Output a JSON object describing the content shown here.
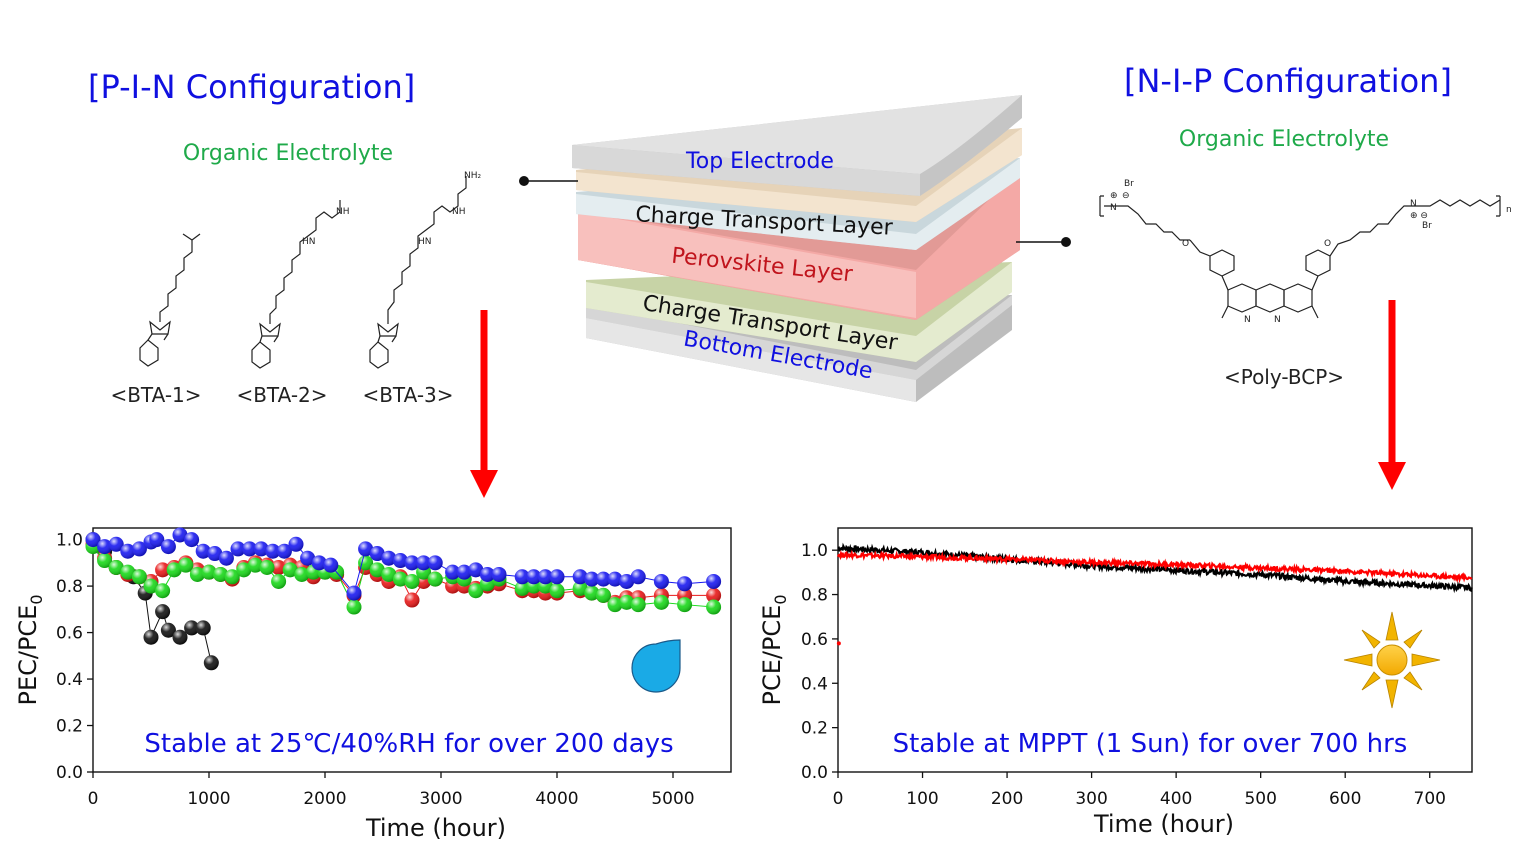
{
  "left_panel": {
    "heading": "[P-I-N Configuration]",
    "subheading": "Organic Electrolyte",
    "molecules": [
      "<BTA-1>",
      "<BTA-2>",
      "<BTA-3>"
    ]
  },
  "right_panel": {
    "heading": "[N-I-P Configuration]",
    "subheading": "Organic Electrolyte",
    "molecule": "<Poly-BCP>"
  },
  "stack": {
    "layers": [
      "Top Electrode",
      "Charge Transport Layer",
      "Perovskite Layer",
      "Charge Transport Layer",
      "Bottom Electrode"
    ]
  },
  "colors": {
    "heading": "#1010e0",
    "subheading": "#1faa4a",
    "arrow": "#ff0000",
    "perovskite_text": "#c0141c",
    "electrode_text": "#1010e0"
  },
  "icons": {
    "left_chart": "water-drop-icon",
    "right_chart": "sun-icon"
  },
  "chart_data": [
    {
      "type": "scatter",
      "title": "",
      "xlabel": "Time (hour)",
      "ylabel_main": "PEC/PCE",
      "ylabel_sub": "0",
      "xlim": [
        0,
        5500
      ],
      "ylim": [
        0.0,
        1.05
      ],
      "xticks": [
        0,
        1000,
        2000,
        3000,
        4000,
        5000
      ],
      "yticks": [
        0.0,
        0.2,
        0.4,
        0.6,
        0.8,
        1.0
      ],
      "annotation": "Stable at 25℃/40%RH for over 200 days",
      "series": [
        {
          "color": "#111111",
          "x": [
            0,
            100,
            200,
            350,
            450,
            500,
            600,
            650,
            750,
            850,
            950,
            1020
          ],
          "y": [
            1.0,
            0.95,
            0.88,
            0.84,
            0.77,
            0.58,
            0.69,
            0.61,
            0.58,
            0.62,
            0.62,
            0.47
          ]
        },
        {
          "color": "#e81818",
          "x": [
            0,
            100,
            200,
            300,
            400,
            500,
            600,
            700,
            800,
            900,
            1000,
            1100,
            1200,
            1300,
            1400,
            1500,
            1600,
            1700,
            1800,
            1900,
            2000,
            2100,
            2250,
            2350,
            2450,
            2550,
            2650,
            2750,
            2850,
            2950,
            3100,
            3200,
            3300,
            3400,
            3500,
            3700,
            3800,
            3900,
            4000,
            4200,
            4300,
            4400,
            4500,
            4600,
            4700,
            4900,
            5100,
            5350
          ],
          "y": [
            0.98,
            0.92,
            0.88,
            0.85,
            0.84,
            0.82,
            0.87,
            0.88,
            0.9,
            0.87,
            0.86,
            0.85,
            0.83,
            0.88,
            0.9,
            0.89,
            0.88,
            0.89,
            0.88,
            0.84,
            0.86,
            0.85,
            0.76,
            0.88,
            0.85,
            0.82,
            0.84,
            0.74,
            0.82,
            0.83,
            0.8,
            0.8,
            0.79,
            0.8,
            0.81,
            0.78,
            0.78,
            0.77,
            0.77,
            0.78,
            0.77,
            0.76,
            0.73,
            0.75,
            0.75,
            0.76,
            0.76,
            0.76
          ]
        },
        {
          "color": "#18d818",
          "x": [
            0,
            100,
            200,
            300,
            400,
            500,
            600,
            700,
            800,
            900,
            1000,
            1100,
            1200,
            1300,
            1400,
            1500,
            1600,
            1700,
            1800,
            1900,
            2000,
            2100,
            2250,
            2350,
            2450,
            2550,
            2650,
            2750,
            2850,
            2950,
            3100,
            3200,
            3300,
            3400,
            3500,
            3700,
            3800,
            3900,
            4000,
            4200,
            4300,
            4400,
            4500,
            4600,
            4700,
            4900,
            5100,
            5350
          ],
          "y": [
            0.97,
            0.91,
            0.88,
            0.86,
            0.84,
            0.8,
            0.78,
            0.87,
            0.89,
            0.85,
            0.86,
            0.85,
            0.84,
            0.87,
            0.89,
            0.88,
            0.82,
            0.87,
            0.85,
            0.86,
            0.86,
            0.86,
            0.71,
            0.9,
            0.87,
            0.85,
            0.83,
            0.82,
            0.86,
            0.83,
            0.84,
            0.83,
            0.78,
            0.81,
            0.83,
            0.79,
            0.8,
            0.8,
            0.78,
            0.79,
            0.77,
            0.76,
            0.72,
            0.73,
            0.72,
            0.73,
            0.72,
            0.71
          ]
        },
        {
          "color": "#1818f0",
          "x": [
            0,
            100,
            200,
            300,
            400,
            500,
            550,
            650,
            750,
            850,
            950,
            1050,
            1150,
            1250,
            1350,
            1450,
            1550,
            1650,
            1750,
            1850,
            1950,
            2050,
            2250,
            2350,
            2450,
            2550,
            2650,
            2750,
            2850,
            2950,
            3100,
            3200,
            3300,
            3400,
            3500,
            3700,
            3800,
            3900,
            4000,
            4200,
            4300,
            4400,
            4500,
            4600,
            4700,
            4900,
            5100,
            5350
          ],
          "y": [
            1.0,
            0.97,
            0.98,
            0.95,
            0.96,
            0.99,
            1.0,
            0.97,
            1.02,
            1.0,
            0.95,
            0.94,
            0.92,
            0.96,
            0.96,
            0.96,
            0.95,
            0.95,
            0.98,
            0.92,
            0.9,
            0.89,
            0.77,
            0.96,
            0.94,
            0.92,
            0.91,
            0.9,
            0.9,
            0.9,
            0.86,
            0.86,
            0.87,
            0.85,
            0.85,
            0.84,
            0.84,
            0.84,
            0.84,
            0.84,
            0.83,
            0.83,
            0.83,
            0.82,
            0.84,
            0.82,
            0.81,
            0.82
          ]
        }
      ]
    },
    {
      "type": "scatter",
      "title": "",
      "xlabel": "Time (hour)",
      "ylabel_main": "PCE/PCE",
      "ylabel_sub": "0",
      "xlim": [
        0,
        750
      ],
      "ylim": [
        0.0,
        1.1
      ],
      "xticks": [
        0,
        100,
        200,
        300,
        400,
        500,
        600,
        700
      ],
      "yticks": [
        0.0,
        0.2,
        0.4,
        0.6,
        0.8,
        1.0
      ],
      "annotation": "Stable at MPPT (1 Sun) for over 700 hrs",
      "series": [
        {
          "color": "#000000",
          "x": [
            0,
            100,
            200,
            300,
            400,
            500,
            600,
            700,
            750
          ],
          "y": [
            1.01,
            0.99,
            0.96,
            0.93,
            0.91,
            0.89,
            0.86,
            0.84,
            0.83
          ]
        },
        {
          "color": "#ff0000",
          "x": [
            0,
            100,
            200,
            300,
            400,
            500,
            600,
            700,
            750
          ],
          "y": [
            0.98,
            0.97,
            0.96,
            0.945,
            0.935,
            0.92,
            0.905,
            0.885,
            0.875
          ]
        },
        {
          "color": "#ff0000",
          "x": [
            1
          ],
          "y": [
            0.58
          ]
        }
      ]
    }
  ]
}
